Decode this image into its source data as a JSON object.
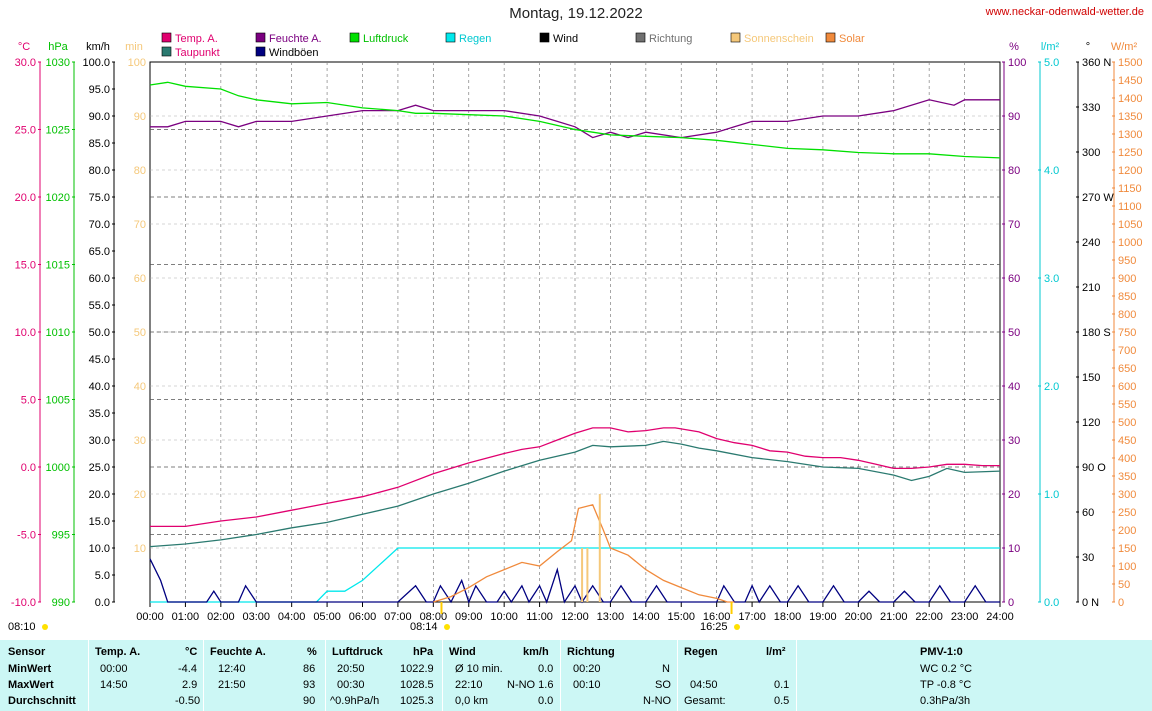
{
  "title": "Montag, 19.12.2022",
  "site": "www.neckar-odenwald-wetter.de",
  "colors": {
    "temp": "#e0006f",
    "dew": "#2b7a70",
    "hum": "#7b0080",
    "pressure": "#00e000",
    "rain": "#00e8ec",
    "wind": "#000080",
    "sun": "#f5c87a",
    "solar": "#f08a3c",
    "grid": "#808080",
    "tableBg": "#ccf7f5"
  },
  "legend": [
    {
      "label": "Temp. A.",
      "color": "#e0006f",
      "textColor": "#e0006f"
    },
    {
      "label": "Feuchte A.",
      "color": "#7b0080",
      "textColor": "#7b0080"
    },
    {
      "label": "Luftdruck",
      "color": "#00e000",
      "textColor": "#00c000"
    },
    {
      "label": "Regen",
      "color": "#00e8ec",
      "textColor": "#00c8d0"
    },
    {
      "label": "Wind",
      "color": "#000000",
      "textColor": "#000000"
    },
    {
      "label": "Richtung",
      "color": "#707070",
      "textColor": "#707070"
    },
    {
      "label": "Sonnenschein",
      "color": "#f5c87a",
      "textColor": "#f5c87a"
    },
    {
      "label": "Solar",
      "color": "#f08a3c",
      "textColor": "#f08a3c"
    },
    {
      "label": "Taupunkt",
      "color": "#2b7a70",
      "textColor": "#e0006f"
    },
    {
      "label": "Windböen",
      "color": "#000080",
      "textColor": "#000000"
    }
  ],
  "axis_units": {
    "temp": "°C",
    "hpa": "hPa",
    "kmh": "km/h",
    "min": "min",
    "pct": "%",
    "rain": "l/m²",
    "dir": "°",
    "solar": "W/m²"
  },
  "chart_data": {
    "type": "line",
    "title": "Montag, 19.12.2022",
    "x": [
      "00:00",
      "01:00",
      "02:00",
      "03:00",
      "04:00",
      "05:00",
      "06:00",
      "07:00",
      "08:00",
      "09:00",
      "10:00",
      "11:00",
      "12:00",
      "13:00",
      "14:00",
      "15:00",
      "16:00",
      "17:00",
      "18:00",
      "19:00",
      "20:00",
      "21:00",
      "22:00",
      "23:00",
      "24:00"
    ],
    "axes": {
      "temp": {
        "min": -10,
        "max": 30,
        "ticks": [
          "30.0",
          "25.0",
          "20.0",
          "15.0",
          "10.0",
          "5.0",
          "0.0",
          "-5.0",
          "-10.0"
        ]
      },
      "pressure": {
        "min": 990,
        "max": 1030,
        "ticks": [
          "1030",
          "1025",
          "1020",
          "1015",
          "1010",
          "1005",
          "1000",
          "995",
          "990"
        ]
      },
      "kmh": {
        "min": 0,
        "max": 100,
        "ticks": [
          "100.0",
          "95.0",
          "90.0",
          "85.0",
          "80.0",
          "75.0",
          "70.0",
          "65.0",
          "60.0",
          "55.0",
          "50.0",
          "45.0",
          "40.0",
          "35.0",
          "30.0",
          "25.0",
          "20.0",
          "15.0",
          "10.0",
          "5.0",
          "0.0"
        ]
      },
      "sunmin": {
        "min": 0,
        "max": 100,
        "ticks": [
          "100",
          "90",
          "80",
          "70",
          "60",
          "50",
          "40",
          "30",
          "20",
          "10"
        ]
      },
      "humidity": {
        "min": 0,
        "max": 100,
        "ticks": [
          "100",
          "90",
          "80",
          "70",
          "60",
          "50",
          "40",
          "30",
          "20",
          "10",
          "0"
        ]
      },
      "rain": {
        "min": 0,
        "max": 5,
        "ticks": [
          "5.0",
          "4.0",
          "3.0",
          "2.0",
          "1.0",
          "0.0"
        ]
      },
      "direction": {
        "min": 0,
        "max": 360,
        "ticks": [
          "360 N",
          "330",
          "300",
          "270 W",
          "240",
          "210",
          "180 S",
          "150",
          "120",
          "90 O",
          "60",
          "30",
          "0 N"
        ]
      },
      "solar": {
        "min": 0,
        "max": 1500,
        "ticks": [
          "1500",
          "1450",
          "1400",
          "1350",
          "1300",
          "1250",
          "1200",
          "1150",
          "1100",
          "1050",
          "1000",
          "950",
          "900",
          "850",
          "800",
          "750",
          "700",
          "650",
          "600",
          "550",
          "500",
          "450",
          "400",
          "350",
          "300",
          "250",
          "200",
          "150",
          "100",
          "50",
          "0"
        ]
      }
    },
    "series": [
      {
        "name": "Temp. A.",
        "axis": "temp",
        "x": [
          0,
          1,
          2,
          3,
          4,
          5,
          6,
          7,
          8,
          9,
          10,
          10.5,
          11,
          11.5,
          12,
          12.5,
          13,
          13.5,
          14,
          14.5,
          14.83,
          15.5,
          16,
          16.5,
          17,
          17.5,
          18,
          18.5,
          19,
          19.5,
          20,
          20.5,
          21,
          21.5,
          22,
          22.5,
          23,
          23.5,
          24
        ],
        "values": [
          -4.4,
          -4.4,
          -4.0,
          -3.7,
          -3.2,
          -2.7,
          -2.2,
          -1.5,
          -0.5,
          0.3,
          1.0,
          1.3,
          1.5,
          2.0,
          2.5,
          2.9,
          2.9,
          2.6,
          2.7,
          2.9,
          2.9,
          2.6,
          2.1,
          1.8,
          1.6,
          1.2,
          1.1,
          0.8,
          0.7,
          0.7,
          0.5,
          0.2,
          -0.1,
          -0.1,
          0.0,
          0.2,
          0.2,
          0.1,
          0.1
        ]
      },
      {
        "name": "Taupunkt",
        "axis": "temp",
        "x": [
          0,
          1,
          2,
          3,
          4,
          5,
          6,
          7,
          8,
          9,
          10,
          11,
          12,
          12.5,
          13,
          14,
          14.5,
          15,
          15.5,
          16,
          17,
          18,
          19,
          20,
          21,
          21.5,
          22,
          22.5,
          23,
          24
        ],
        "values": [
          -5.9,
          -5.7,
          -5.4,
          -5.0,
          -4.5,
          -4.1,
          -3.5,
          -2.9,
          -2.0,
          -1.2,
          -0.3,
          0.5,
          1.1,
          1.6,
          1.5,
          1.6,
          1.9,
          1.7,
          1.4,
          1.2,
          0.7,
          0.4,
          0.0,
          -0.1,
          -0.6,
          -1.0,
          -0.7,
          -0.1,
          -0.4,
          -0.3
        ]
      },
      {
        "name": "Feuchte A.",
        "axis": "humidity",
        "x": [
          0,
          0.5,
          1,
          2,
          2.5,
          3,
          4,
          5,
          6,
          7,
          7.5,
          8,
          9,
          10,
          11,
          11.5,
          12,
          12.5,
          13,
          13.5,
          14,
          15,
          16,
          16.5,
          17,
          18,
          19,
          20,
          21,
          22,
          22.7,
          23,
          24
        ],
        "values": [
          88,
          88,
          89,
          89,
          88,
          89,
          89,
          90,
          91,
          91,
          92,
          91,
          91,
          91,
          90,
          89,
          88,
          86,
          87,
          86,
          87,
          86,
          87,
          88,
          89,
          89,
          90,
          90,
          91,
          93,
          92,
          93,
          93
        ]
      },
      {
        "name": "Luftdruck",
        "axis": "pressure",
        "x": [
          0,
          0.5,
          1,
          2,
          2.5,
          3,
          4,
          5,
          6,
          7,
          7.5,
          8,
          9,
          10,
          11,
          12,
          12.5,
          13,
          14,
          15,
          16,
          17,
          18,
          19,
          20,
          21,
          22,
          23,
          24
        ],
        "values": [
          1028.3,
          1028.5,
          1028.2,
          1028.0,
          1027.5,
          1027.2,
          1026.9,
          1027.0,
          1026.6,
          1026.4,
          1026.2,
          1026.2,
          1026.1,
          1026.0,
          1025.6,
          1025.0,
          1024.8,
          1024.6,
          1024.5,
          1024.4,
          1024.2,
          1023.9,
          1023.6,
          1023.5,
          1023.3,
          1023.2,
          1023.2,
          1023.0,
          1022.9
        ]
      },
      {
        "name": "Regen",
        "axis": "rain",
        "x": [
          0,
          4.7,
          5.0,
          5.5,
          6,
          6.5,
          7,
          7.5,
          8,
          9,
          10,
          11,
          12,
          13,
          14,
          15,
          16,
          17,
          18,
          19,
          20,
          21,
          22,
          23,
          24
        ],
        "values": [
          0,
          0,
          0.1,
          0.1,
          0.2,
          0.35,
          0.5,
          0.5,
          0.5,
          0.5,
          0.5,
          0.5,
          0.5,
          0.5,
          0.5,
          0.5,
          0.5,
          0.5,
          0.5,
          0.5,
          0.5,
          0.5,
          0.5,
          0.5,
          0.5
        ]
      },
      {
        "name": "Windböen",
        "axis": "kmh",
        "x": [
          0,
          0.3,
          0.5,
          1,
          1.6,
          1.8,
          2,
          2.5,
          2.7,
          3,
          4,
          4.5,
          5,
          5.5,
          6,
          7,
          7.5,
          7.8,
          8,
          8.2,
          8.5,
          8.8,
          9,
          9.2,
          9.5,
          9.8,
          10,
          10.2,
          10.5,
          10.7,
          11,
          11.2,
          11.5,
          11.7,
          12,
          12.2,
          12.5,
          12.8,
          13,
          13.3,
          13.6,
          14,
          14.3,
          14.6,
          15,
          16,
          16.2,
          16.5,
          16.8,
          17,
          17.2,
          17.5,
          17.8,
          18,
          18.3,
          18.6,
          19,
          19.3,
          19.6,
          20,
          20.3,
          20.6,
          21,
          21.3,
          21.6,
          22,
          22.3,
          22.6,
          23,
          23.3,
          23.6,
          24
        ],
        "values": [
          8,
          4,
          0,
          0,
          0,
          2,
          0,
          0,
          3,
          0,
          0,
          0,
          0,
          0,
          0,
          0,
          3,
          0,
          0,
          3,
          0,
          4,
          0,
          3,
          0,
          0,
          2,
          0,
          3,
          0,
          3,
          0,
          6,
          0,
          3,
          0,
          3,
          0,
          0,
          3,
          0,
          0,
          3,
          0,
          0,
          0,
          3,
          0,
          0,
          3,
          0,
          3,
          0,
          0,
          3,
          0,
          0,
          3,
          0,
          0,
          2,
          0,
          0,
          2,
          0,
          0,
          3,
          0,
          0,
          3,
          0,
          0
        ]
      },
      {
        "name": "Solar",
        "axis": "solar",
        "x": [
          8,
          8.5,
          9,
          9.5,
          10,
          10.5,
          11,
          11.5,
          11.9,
          12.1,
          12.5,
          12.8,
          13,
          13.5,
          14,
          14.5,
          15,
          15.5,
          16,
          16.3,
          16.5
        ],
        "values": [
          0,
          15,
          40,
          70,
          90,
          110,
          100,
          140,
          170,
          260,
          270,
          200,
          150,
          130,
          90,
          60,
          40,
          20,
          10,
          0,
          0
        ]
      },
      {
        "name": "Sonnenschein",
        "axis": "sunmin",
        "x": [
          12.2,
          12.35,
          12.7
        ],
        "values": [
          10,
          10,
          20
        ]
      }
    ],
    "time_markers": [
      "08:10",
      "08:14",
      "16:25"
    ]
  },
  "table": {
    "sensor": {
      "header": "Sensor",
      "min": "MinWert",
      "max": "MaxWert",
      "avg": "Durchschnitt"
    },
    "temp": {
      "header": "Temp. A.",
      "unit": "°C",
      "min_time": "00:00",
      "min": "-4.4",
      "max_time": "14:50",
      "max": "2.9",
      "avg": "-0.50"
    },
    "hum": {
      "header": "Feuchte A.",
      "unit": "%",
      "min_time": "12:40",
      "min": "86",
      "max_time": "21:50",
      "max": "93",
      "avg": "90"
    },
    "press": {
      "header": "Luftdruck",
      "unit": "hPa",
      "min_time": "20:50",
      "min": "1022.9",
      "max_time": "00:30",
      "max": "1028.5",
      "avg_label": "^0.9hPa/h",
      "avg": "1025.3"
    },
    "wind": {
      "header": "Wind",
      "unit": "km/h",
      "min_label": "Ø 10 min.",
      "min": "0.0",
      "max_time": "22:10",
      "max": "N-NO 1.6",
      "avg_label": "0,0 km",
      "avg": "0.0"
    },
    "dir": {
      "header": "Richtung",
      "min_time": "00:20",
      "min": "N",
      "max_time": "00:10",
      "max": "SO",
      "avg": "N-NO"
    },
    "rain": {
      "header": "Regen",
      "unit": "l/m²",
      "max_time": "04:50",
      "max": "0.1",
      "avg_label": "Gesamt:",
      "avg": "0.5"
    },
    "pmv": {
      "header": "PMV-1:0",
      "min": "WC 0.2 °C",
      "max": "TP -0.8 °C",
      "avg": "0.3hPa/3h"
    }
  }
}
